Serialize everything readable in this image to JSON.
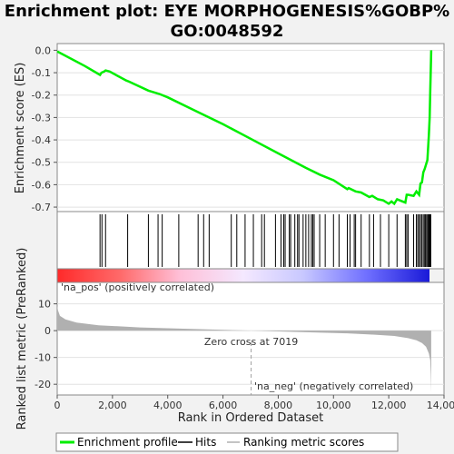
{
  "chart_data": {
    "type": "line",
    "title_line1": "Enrichment plot: EYE MORPHOGENESIS%GOBP%",
    "title_line2": "GO:0048592",
    "es_panel": {
      "ylabel": "Enrichment score (ES)",
      "ylim": [
        -0.72,
        0.03
      ],
      "yticks": [
        0.0,
        -0.1,
        -0.2,
        -0.3,
        -0.4,
        -0.5,
        -0.6,
        -0.7
      ],
      "ytick_labels": [
        "0.0",
        "-0.1",
        "-0.2",
        "-0.3",
        "-0.4",
        "-0.5",
        "-0.6",
        "-0.7"
      ],
      "series": {
        "name": "Enrichment profile",
        "color": "#00ee00",
        "x": [
          0,
          1000,
          1550,
          1600,
          1700,
          1750,
          1900,
          2500,
          2600,
          3300,
          3700,
          4000,
          5000,
          6000,
          7000,
          8000,
          9000,
          9500,
          10000,
          10500,
          10550,
          10800,
          11000,
          11300,
          11400,
          11600,
          11800,
          12000,
          12100,
          12200,
          12300,
          12400,
          12600,
          12650,
          12700,
          12900,
          13000,
          13100,
          13150,
          13200,
          13250,
          13300,
          13400,
          13450,
          13480,
          13500,
          13520,
          13535
        ],
        "y": [
          -0.005,
          -0.07,
          -0.11,
          -0.1,
          -0.095,
          -0.09,
          -0.095,
          -0.135,
          -0.14,
          -0.18,
          -0.195,
          -0.21,
          -0.27,
          -0.33,
          -0.395,
          -0.46,
          -0.525,
          -0.555,
          -0.58,
          -0.62,
          -0.615,
          -0.63,
          -0.635,
          -0.655,
          -0.65,
          -0.665,
          -0.67,
          -0.685,
          -0.675,
          -0.685,
          -0.665,
          -0.67,
          -0.68,
          -0.645,
          -0.645,
          -0.65,
          -0.63,
          -0.645,
          -0.595,
          -0.59,
          -0.545,
          -0.53,
          -0.49,
          -0.38,
          -0.3,
          -0.19,
          -0.09,
          0.0
        ]
      }
    },
    "hits_panel": {
      "name": "Hits",
      "positions": [
        1550,
        1620,
        1750,
        2550,
        3300,
        3650,
        3800,
        4400,
        5100,
        5300,
        5500,
        6300,
        6500,
        6800,
        7100,
        7400,
        7500,
        7900,
        8100,
        8200,
        8250,
        8400,
        8450,
        8600,
        8700,
        8750,
        8900,
        9000,
        9100,
        9200,
        9250,
        9300,
        9500,
        9700,
        10000,
        10200,
        10500,
        10600,
        10750,
        10800,
        11000,
        11300,
        11450,
        11700,
        12000,
        12300,
        12600,
        12650,
        12700,
        12900,
        13000,
        13050,
        13100,
        13150,
        13200,
        13250,
        13300,
        13320,
        13350,
        13400,
        13430,
        13460,
        13480,
        13500,
        13520
      ]
    },
    "rank_panel": {
      "name": "Ranking metric scores",
      "ylabel": "Ranked list metric (PreRanked)",
      "xlabel": "Rank in Ordered Dataset",
      "ylim": [
        -24,
        18
      ],
      "yticks": [
        10,
        0,
        -10,
        -20
      ],
      "ytick_labels": [
        "10",
        "0",
        "-10",
        "-20"
      ],
      "xlim": [
        0,
        14000
      ],
      "xticks": [
        0,
        2000,
        4000,
        6000,
        8000,
        10000,
        12000,
        14000
      ],
      "xtick_labels": [
        "0",
        "2,000",
        "4,000",
        "6,000",
        "8,000",
        "10,000",
        "12,000",
        "14,000"
      ],
      "n_genes": 13535,
      "zero_cross": 7019,
      "zero_cross_label": "Zero cross at 7019",
      "pos_label": "'na_pos' (positively correlated)",
      "neg_label": "'na_neg' (negatively correlated)",
      "fill_color": "#b0b0b0",
      "metric_profile": [
        [
          0,
          9.5
        ],
        [
          30,
          7.5
        ],
        [
          100,
          5.5
        ],
        [
          300,
          4.2
        ],
        [
          700,
          3.0
        ],
        [
          1500,
          2.0
        ],
        [
          3000,
          1.2
        ],
        [
          5000,
          0.6
        ],
        [
          7019,
          0.0
        ],
        [
          9000,
          -0.6
        ],
        [
          10500,
          -1.0
        ],
        [
          11500,
          -1.5
        ],
        [
          12200,
          -2.0
        ],
        [
          12700,
          -2.8
        ],
        [
          13000,
          -3.6
        ],
        [
          13200,
          -4.6
        ],
        [
          13350,
          -6.0
        ],
        [
          13450,
          -8.5
        ],
        [
          13500,
          -11.0
        ],
        [
          13520,
          -16.0
        ],
        [
          13535,
          -23.0
        ]
      ]
    },
    "legend": [
      "Enrichment profile",
      "Hits",
      "Ranking metric scores"
    ],
    "colors": {
      "es_line": "#00ee00",
      "hit_line": "#000000",
      "pos_label": "#cc0000",
      "neg_label": "#0000cc",
      "zero_cross_line": "#a0a0a0"
    }
  }
}
